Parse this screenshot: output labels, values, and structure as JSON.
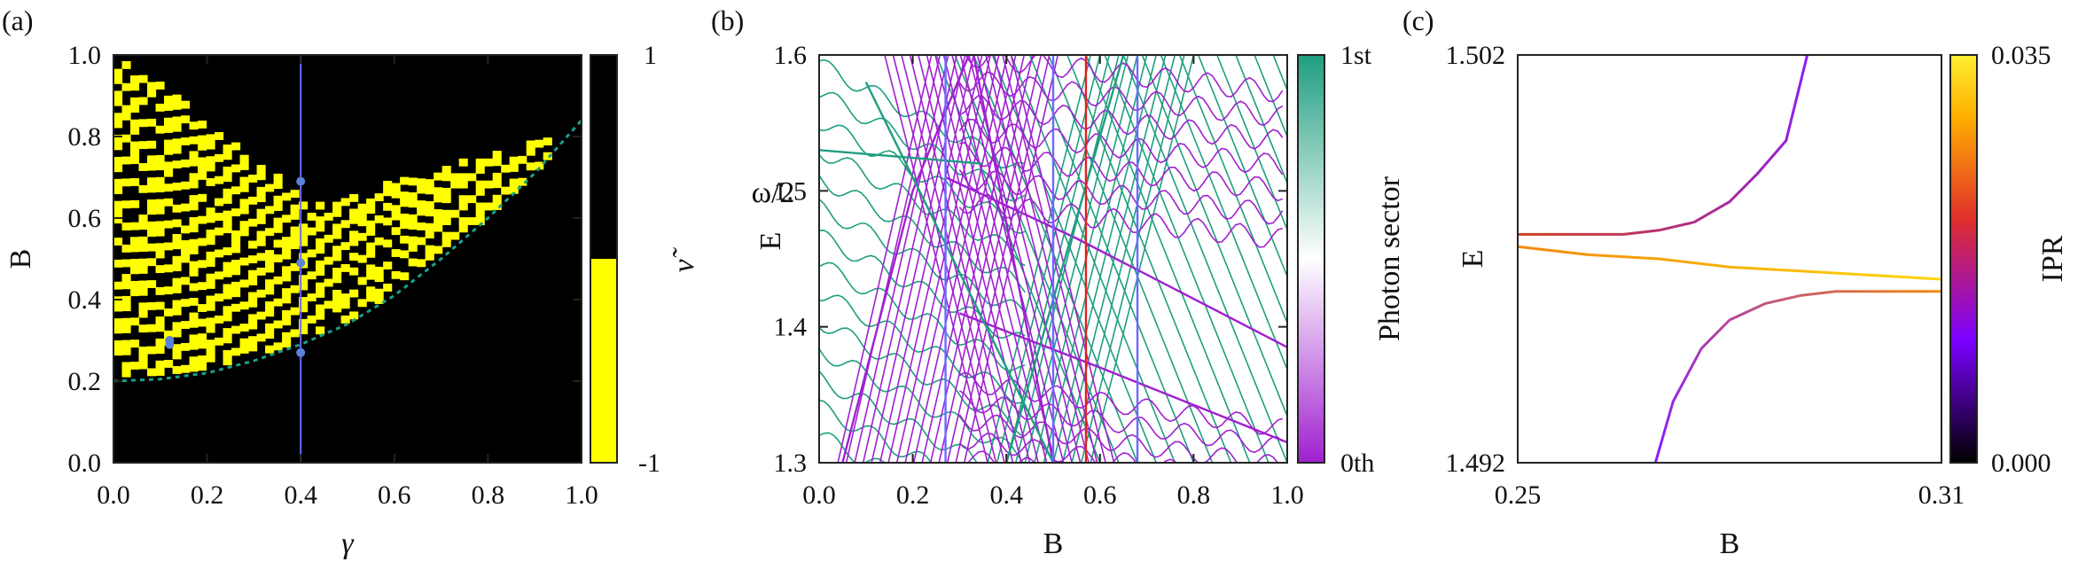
{
  "figure": {
    "panels": [
      "(a)",
      "(b)",
      "(c)"
    ]
  },
  "chart_data": [
    {
      "panel": "(a)",
      "type": "heatmap",
      "title": "",
      "xlabel": "γ",
      "ylabel": "B",
      "xlim": [
        0.0,
        1.0
      ],
      "ylim": [
        0.0,
        1.0
      ],
      "xticks": [
        "0.0",
        "0.2",
        "0.4",
        "0.6",
        "0.8",
        "1.0"
      ],
      "yticks": [
        "0.0",
        "0.2",
        "0.4",
        "0.6",
        "0.8",
        "1.0"
      ],
      "colorbar": {
        "label": "ν̃",
        "ticks": [
          "1",
          "-1"
        ],
        "colors": {
          "1": "#000000",
          "-1": "#ffff00"
        }
      },
      "background_value": 1,
      "vertical_line": {
        "x": 0.4,
        "color": "#6a6aff"
      },
      "dashed_curve": {
        "color": "#1aa08a",
        "points": [
          [
            0.0,
            0.2
          ],
          [
            0.1,
            0.205
          ],
          [
            0.2,
            0.22
          ],
          [
            0.3,
            0.25
          ],
          [
            0.4,
            0.29
          ],
          [
            0.5,
            0.34
          ],
          [
            0.6,
            0.41
          ],
          [
            0.7,
            0.5
          ],
          [
            0.8,
            0.6
          ],
          [
            0.9,
            0.71
          ],
          [
            1.0,
            0.84
          ]
        ]
      },
      "markers": [
        {
          "x": 0.12,
          "y": 0.29
        },
        {
          "x": 0.12,
          "y": 0.3
        },
        {
          "x": 0.4,
          "y": 0.27
        },
        {
          "x": 0.4,
          "y": 0.49
        },
        {
          "x": 0.4,
          "y": 0.69
        }
      ],
      "marker_color": "#5b82d6"
    },
    {
      "panel": "(b)",
      "type": "line",
      "title": "",
      "xlabel": "B",
      "ylabel": "E",
      "annotation": "ω/2",
      "xlim": [
        0.0,
        1.0
      ],
      "ylim": [
        1.3,
        1.6
      ],
      "xticks": [
        "0.0",
        "0.2",
        "0.4",
        "0.6",
        "0.8",
        "1.0"
      ],
      "yticks": [
        "1.3",
        "1.4",
        "1.5",
        "1.6"
      ],
      "colorbar": {
        "label": "Photon sector",
        "ticks": [
          "1st",
          "0th"
        ],
        "colors": {
          "1st": "#1f9e80",
          "0th": "#a020d0"
        }
      },
      "vertical_lines": [
        {
          "x": 0.27,
          "color": "#6a6aff"
        },
        {
          "x": 0.5,
          "color": "#6a6aff"
        },
        {
          "x": 0.57,
          "color": "#e02020"
        },
        {
          "x": 0.68,
          "color": "#6a6aff"
        }
      ],
      "series": [
        {
          "sector": "0th",
          "color": "#a020d0",
          "segments": [
            {
              "x": [
                0.27,
                0.55,
                1.0
              ],
              "y": [
                1.51,
                1.465,
                1.385
              ]
            },
            {
              "x": [
                0.3,
                0.6,
                1.0
              ],
              "y": [
                1.41,
                1.37,
                1.315
              ]
            },
            {
              "x": [
                0.05,
                0.2,
                0.32
              ],
              "y": [
                1.3,
                1.5,
                1.6
              ]
            },
            {
              "x": [
                0.33,
                0.5
              ],
              "y": [
                1.6,
                1.3
              ]
            }
          ]
        },
        {
          "sector": "1st",
          "color": "#1f9e80",
          "segments": [
            {
              "x": [
                0.4,
                0.65
              ],
              "y": [
                1.3,
                1.6
              ]
            },
            {
              "x": [
                0.1,
                0.5
              ],
              "y": [
                1.58,
                1.3
              ]
            },
            {
              "x": [
                0.0,
                0.35
              ],
              "y": [
                1.53,
                1.52
              ]
            }
          ]
        }
      ]
    },
    {
      "panel": "(c)",
      "type": "line",
      "title": "",
      "xlabel": "B",
      "ylabel": "E",
      "xlim": [
        0.25,
        0.31
      ],
      "ylim": [
        1.492,
        1.502
      ],
      "xticks": [
        "0.25",
        "0.31"
      ],
      "yticks": [
        "1.492",
        "1.502"
      ],
      "colorbar": {
        "label": "IPR",
        "ticks": [
          "0.035",
          "0.000"
        ],
        "colors": [
          "#000000",
          "#7a00ff",
          "#e0302a",
          "#ffd800",
          "#ffee33"
        ]
      },
      "series": [
        {
          "name": "",
          "x": [
            0.25,
            0.255,
            0.26,
            0.265,
            0.27,
            0.275,
            0.28,
            0.284,
            0.288,
            0.291
          ],
          "y": [
            1.4976,
            1.4976,
            1.4976,
            1.4976,
            1.4977,
            1.4979,
            1.4984,
            1.4991,
            1.4999,
            1.502
          ],
          "color_start": "#d04020",
          "color_end": "#8a1aff"
        },
        {
          "name": "",
          "x": [
            0.25,
            0.26,
            0.27,
            0.28,
            0.29,
            0.3,
            0.31
          ],
          "y": [
            1.4973,
            1.4971,
            1.497,
            1.4968,
            1.4967,
            1.4966,
            1.4965
          ],
          "color_start": "#f08a10",
          "color_end": "#ffd700"
        },
        {
          "name": "",
          "x": [
            0.2695,
            0.272,
            0.276,
            0.28,
            0.285,
            0.29,
            0.295,
            0.3,
            0.31
          ],
          "y": [
            1.492,
            1.4935,
            1.4948,
            1.4955,
            1.4959,
            1.4961,
            1.4962,
            1.4962,
            1.4962
          ],
          "color_start": "#8a1aff",
          "color_end": "#f08a10"
        }
      ]
    }
  ]
}
